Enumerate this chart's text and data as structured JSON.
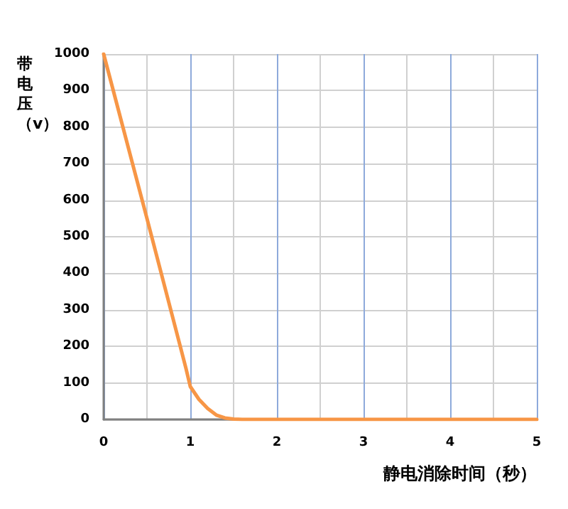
{
  "chart_data": {
    "type": "line",
    "xlabel": "静电消除时间（秒）",
    "ylabel": "带电压（v）",
    "series": [
      {
        "color": "#f79646",
        "x": [
          0,
          0.5,
          0.95,
          1,
          1.1,
          1.2,
          1.3,
          1.4,
          1.5,
          1.6,
          5
        ],
        "values": [
          1000,
          550,
          140,
          90,
          55,
          30,
          12,
          4,
          1,
          0,
          0
        ]
      }
    ],
    "xlim": [
      0,
      5
    ],
    "xticks": [
      0,
      {
        "value": 0.5,
        "label": null
      },
      1,
      {
        "value": 1.5,
        "label": null
      },
      2,
      {
        "value": 2.5,
        "label": null
      },
      3,
      {
        "value": 3.5,
        "label": null
      },
      4,
      {
        "value": 4.5,
        "label": null
      },
      5
    ],
    "ylim": [
      0,
      1000
    ],
    "yticks": [
      0,
      100,
      200,
      300,
      400,
      500,
      600,
      700,
      800,
      900,
      1000
    ],
    "grid": true,
    "marker": "none",
    "line_style": "solid"
  }
}
